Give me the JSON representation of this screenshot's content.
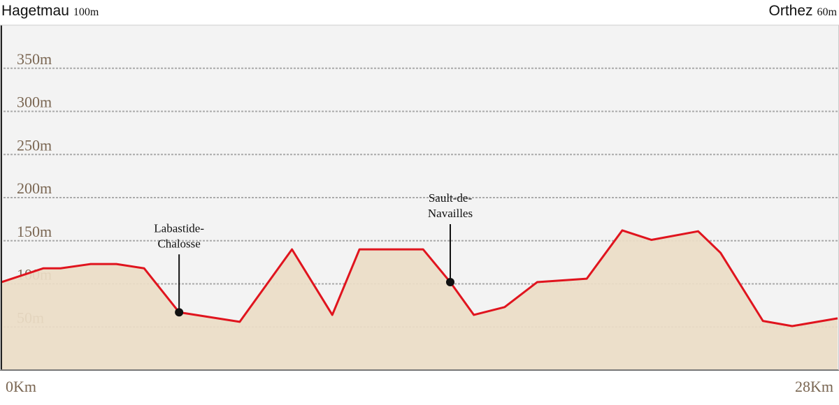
{
  "chart_data": {
    "type": "area",
    "start_name": "Hagetmau",
    "start_elevation": "100m",
    "end_name": "Orthez",
    "end_elevation": "60m",
    "x": [
      0,
      1.4,
      1.98,
      2.99,
      3.85,
      4.78,
      5.95,
      7.98,
      9.73,
      11.08,
      11.99,
      14.12,
      15.03,
      15.82,
      16.85,
      17.94,
      19.6,
      20.79,
      21.77,
      23.33,
      24.08,
      25.5,
      26.48,
      28
    ],
    "values": [
      102,
      118,
      118,
      123,
      123,
      118,
      67,
      56,
      140,
      64,
      140,
      140,
      102,
      64,
      73,
      102,
      106,
      162,
      151,
      161,
      136,
      57,
      51,
      60
    ],
    "color": "#e0141e",
    "fill": "#ebddc7",
    "xlim": [
      0,
      28
    ],
    "xticks": [
      {
        "value": 0,
        "label": "0Km"
      },
      {
        "value": 28,
        "label": "28Km"
      }
    ],
    "ylim": [
      0,
      400
    ],
    "yticks": [
      {
        "value": 50,
        "label": "50m"
      },
      {
        "value": 100,
        "label": "100m"
      },
      {
        "value": 150,
        "label": "150m"
      },
      {
        "value": 200,
        "label": "200m"
      },
      {
        "value": 250,
        "label": "250m"
      },
      {
        "value": 300,
        "label": "300m"
      },
      {
        "value": 350,
        "label": "350m"
      }
    ],
    "grid": true,
    "annotations": [
      {
        "x": 5.95,
        "label_lines": [
          "Labastide-",
          "Chalosse"
        ]
      },
      {
        "x": 15.03,
        "label_lines": [
          "Sault-de-",
          "Navailles"
        ]
      }
    ]
  }
}
